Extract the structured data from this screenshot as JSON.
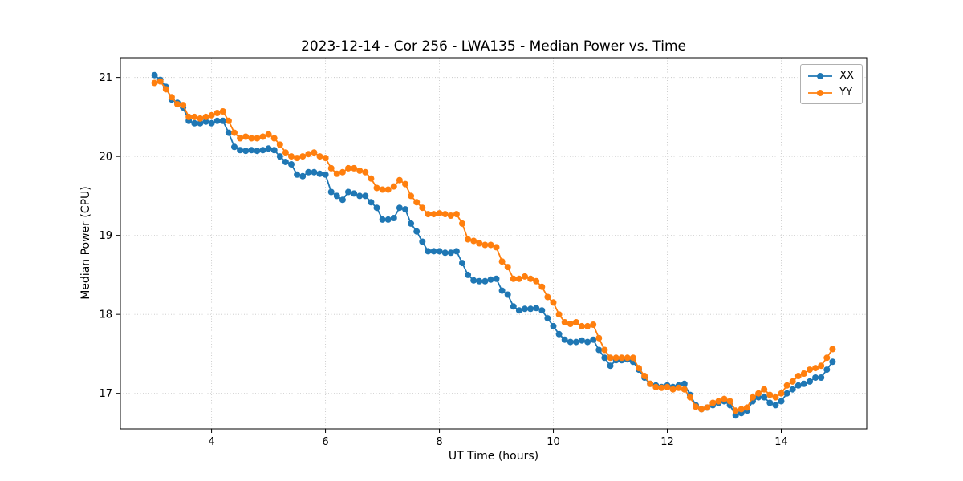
{
  "chart_data": {
    "type": "line",
    "title": "2023-12-14 - Cor 256 - LWA135 - Median Power vs. Time",
    "xlabel": "UT Time (hours)",
    "ylabel": "Median Power (CPU)",
    "xlim": [
      2.4,
      15.5
    ],
    "ylim": [
      16.55,
      21.25
    ],
    "xticks": [
      4,
      6,
      8,
      10,
      12,
      14
    ],
    "yticks": [
      17,
      18,
      19,
      20,
      21
    ],
    "grid": true,
    "legend_position": "upper right",
    "marker": "circle",
    "x": [
      3.0,
      3.1,
      3.2,
      3.3,
      3.4,
      3.5,
      3.6,
      3.7,
      3.8,
      3.9,
      4.0,
      4.1,
      4.2,
      4.3,
      4.4,
      4.5,
      4.6,
      4.7,
      4.8,
      4.9,
      5.0,
      5.1,
      5.2,
      5.3,
      5.4,
      5.5,
      5.6,
      5.7,
      5.8,
      5.9,
      6.0,
      6.1,
      6.2,
      6.3,
      6.4,
      6.5,
      6.6,
      6.7,
      6.8,
      6.9,
      7.0,
      7.1,
      7.2,
      7.3,
      7.4,
      7.5,
      7.6,
      7.7,
      7.8,
      7.9,
      8.0,
      8.1,
      8.2,
      8.3,
      8.4,
      8.5,
      8.6,
      8.7,
      8.8,
      8.9,
      9.0,
      9.1,
      9.2,
      9.3,
      9.4,
      9.5,
      9.6,
      9.7,
      9.8,
      9.9,
      10.0,
      10.1,
      10.2,
      10.3,
      10.4,
      10.5,
      10.6,
      10.7,
      10.8,
      10.9,
      11.0,
      11.1,
      11.2,
      11.3,
      11.4,
      11.5,
      11.6,
      11.7,
      11.8,
      11.9,
      12.0,
      12.1,
      12.2,
      12.3,
      12.4,
      12.5,
      12.6,
      12.7,
      12.8,
      12.9,
      13.0,
      13.1,
      13.2,
      13.3,
      13.4,
      13.5,
      13.6,
      13.7,
      13.8,
      13.9,
      14.0,
      14.1,
      14.2,
      14.3,
      14.4,
      14.5,
      14.6,
      14.7,
      14.8,
      14.9
    ],
    "series": [
      {
        "name": "XX",
        "color": "#1f77b4",
        "values": [
          21.03,
          20.97,
          20.88,
          20.72,
          20.68,
          20.62,
          20.45,
          20.42,
          20.42,
          20.44,
          20.42,
          20.45,
          20.45,
          20.3,
          20.12,
          20.08,
          20.07,
          20.08,
          20.07,
          20.08,
          20.1,
          20.08,
          20.0,
          19.93,
          19.9,
          19.77,
          19.75,
          19.8,
          19.8,
          19.78,
          19.77,
          19.55,
          19.5,
          19.45,
          19.55,
          19.53,
          19.5,
          19.5,
          19.42,
          19.35,
          19.2,
          19.2,
          19.22,
          19.35,
          19.33,
          19.15,
          19.05,
          18.92,
          18.8,
          18.8,
          18.8,
          18.78,
          18.78,
          18.8,
          18.65,
          18.5,
          18.43,
          18.42,
          18.42,
          18.44,
          18.45,
          18.3,
          18.25,
          18.1,
          18.05,
          18.07,
          18.07,
          18.08,
          18.05,
          17.95,
          17.85,
          17.75,
          17.68,
          17.65,
          17.65,
          17.67,
          17.65,
          17.68,
          17.55,
          17.45,
          17.35,
          17.42,
          17.42,
          17.43,
          17.4,
          17.3,
          17.2,
          17.12,
          17.1,
          17.08,
          17.1,
          17.08,
          17.1,
          17.12,
          16.98,
          16.85,
          16.8,
          16.82,
          16.85,
          16.88,
          16.9,
          16.85,
          16.72,
          16.75,
          16.78,
          16.9,
          16.95,
          16.95,
          16.88,
          16.85,
          16.9,
          17.0,
          17.05,
          17.1,
          17.12,
          17.15,
          17.2,
          17.2,
          17.3,
          17.4
        ]
      },
      {
        "name": "YY",
        "color": "#ff7f0e",
        "values": [
          20.93,
          20.95,
          20.85,
          20.75,
          20.66,
          20.65,
          20.5,
          20.5,
          20.48,
          20.5,
          20.52,
          20.55,
          20.57,
          20.45,
          20.3,
          20.23,
          20.25,
          20.23,
          20.23,
          20.25,
          20.28,
          20.23,
          20.15,
          20.05,
          20.0,
          19.98,
          20.0,
          20.03,
          20.05,
          20.0,
          19.98,
          19.85,
          19.78,
          19.8,
          19.85,
          19.85,
          19.82,
          19.8,
          19.72,
          19.6,
          19.58,
          19.58,
          19.62,
          19.7,
          19.65,
          19.5,
          19.42,
          19.35,
          19.27,
          19.27,
          19.28,
          19.27,
          19.25,
          19.27,
          19.15,
          18.95,
          18.93,
          18.9,
          18.88,
          18.88,
          18.85,
          18.67,
          18.6,
          18.45,
          18.45,
          18.48,
          18.45,
          18.42,
          18.35,
          18.22,
          18.15,
          18.0,
          17.9,
          17.88,
          17.9,
          17.85,
          17.85,
          17.87,
          17.7,
          17.55,
          17.45,
          17.45,
          17.45,
          17.45,
          17.45,
          17.32,
          17.22,
          17.12,
          17.08,
          17.07,
          17.08,
          17.05,
          17.07,
          17.05,
          16.95,
          16.83,
          16.8,
          16.82,
          16.88,
          16.9,
          16.93,
          16.9,
          16.78,
          16.8,
          16.82,
          16.95,
          17.0,
          17.05,
          16.98,
          16.95,
          17.0,
          17.1,
          17.15,
          17.22,
          17.25,
          17.3,
          17.32,
          17.35,
          17.45,
          17.56
        ]
      }
    ]
  }
}
